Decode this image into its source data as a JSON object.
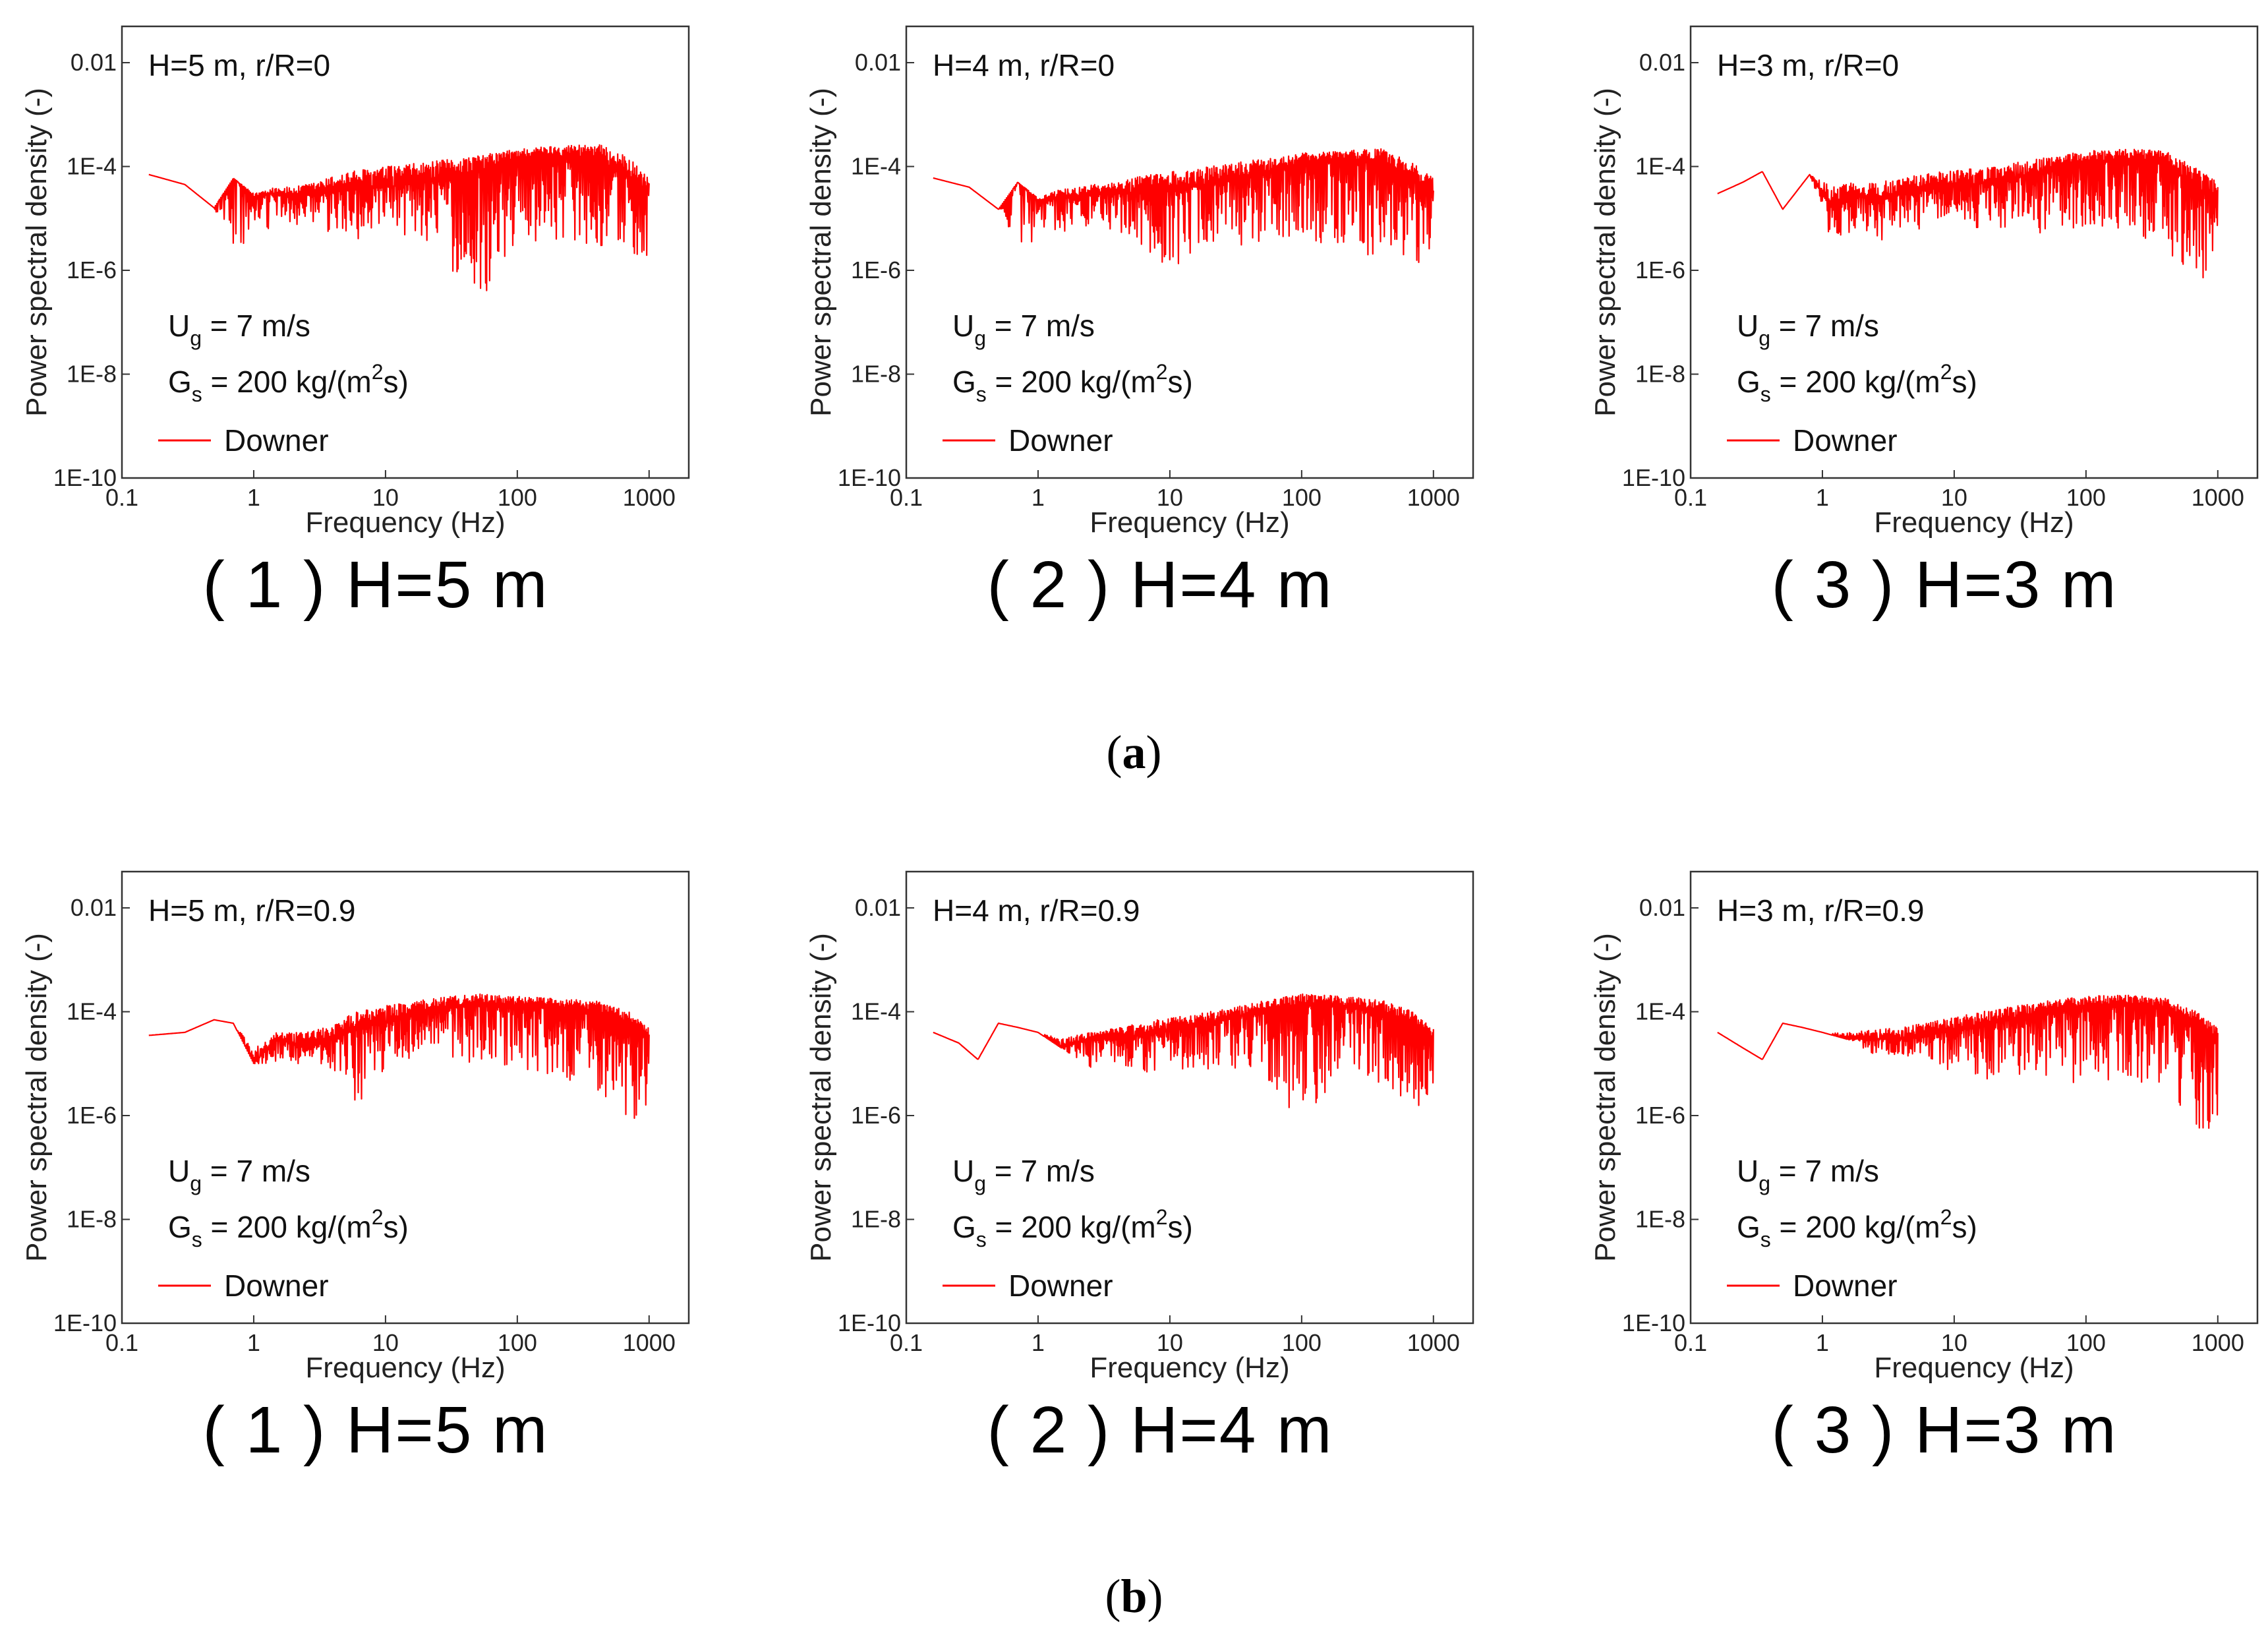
{
  "chart_data": [
    {
      "type": "line",
      "row": "a",
      "id": "a1",
      "title": "H=5 m, r/R=0",
      "xlabel": "Frequency (Hz)",
      "ylabel": "Power spectral density (-)",
      "xscale": "log",
      "yscale": "log",
      "xlim": [
        0.1,
        2000
      ],
      "ylim": [
        1e-10,
        0.05
      ],
      "xticks": [
        0.1,
        1,
        10,
        100,
        1000
      ],
      "xtick_labels": [
        "0.1",
        "1",
        "10",
        "100",
        "1000"
      ],
      "yticks": [
        1e-10,
        1e-08,
        1e-06,
        0.0001,
        0.01
      ],
      "ytick_labels": [
        "1E-10",
        "1E-8",
        "1E-6",
        "1E-4",
        "0.01"
      ],
      "ug": {
        "prefix": "U",
        "sub": "g",
        "rest": " = 7 m/s"
      },
      "gs": {
        "prefix": "G",
        "sub": "s",
        "mid": " = 200 kg/(m",
        "sup": "2",
        "rest": "s)"
      },
      "legend": "Downer",
      "series": [
        {
          "name": "Downer",
          "color": "#ff0000",
          "x": [
            0.16,
            0.3,
            0.5,
            0.7,
            1.0,
            1.4,
            2.0,
            3.0,
            5.0,
            10,
            20,
            50,
            100,
            200,
            400,
            700,
            1000
          ],
          "y_center": [
            7e-05,
            4.5e-05,
            1.6e-05,
            6e-05,
            2.5e-05,
            3e-05,
            2.5e-05,
            3e-05,
            3.5e-05,
            4e-05,
            5e-05,
            8e-05,
            0.00013,
            0.00016,
            0.00014,
            6e-05,
            3e-05
          ],
          "y_min": [
            7e-05,
            4.5e-05,
            1.6e-05,
            2e-06,
            3e-06,
            6e-06,
            8e-06,
            4e-06,
            4e-06,
            4e-06,
            4e-06,
            2e-07,
            3e-06,
            4e-06,
            3e-06,
            2e-06,
            1.5e-06
          ],
          "y_max": [
            7e-05,
            4.5e-05,
            1.6e-05,
            6e-05,
            3e-05,
            4e-05,
            4e-05,
            5e-05,
            8e-05,
            0.0001,
            0.00012,
            0.00016,
            0.00022,
            0.00025,
            0.00028,
            0.00015,
            6e-05
          ]
        }
      ]
    },
    {
      "type": "line",
      "row": "a",
      "id": "a2",
      "title": "H=4 m, r/R=0",
      "xlabel": "Frequency (Hz)",
      "ylabel": "Power spectral density (-)",
      "xscale": "log",
      "yscale": "log",
      "xlim": [
        0.1,
        2000
      ],
      "ylim": [
        1e-10,
        0.05
      ],
      "xticks": [
        0.1,
        1,
        10,
        100,
        1000
      ],
      "xtick_labels": [
        "0.1",
        "1",
        "10",
        "100",
        "1000"
      ],
      "yticks": [
        1e-10,
        1e-08,
        1e-06,
        0.0001,
        0.01
      ],
      "ytick_labels": [
        "1E-10",
        "1E-8",
        "1E-6",
        "1E-4",
        "0.01"
      ],
      "ug": {
        "prefix": "U",
        "sub": "g",
        "rest": " = 7 m/s"
      },
      "gs": {
        "prefix": "G",
        "sub": "s",
        "mid": " = 200 kg/(m",
        "sup": "2",
        "rest": "s)"
      },
      "legend": "Downer",
      "series": [
        {
          "name": "Downer",
          "color": "#ff0000",
          "x": [
            0.16,
            0.3,
            0.5,
            0.7,
            1.0,
            1.4,
            2.0,
            3.0,
            5.0,
            10,
            20,
            50,
            100,
            200,
            400,
            700,
            1000
          ],
          "y_center": [
            6e-05,
            4e-05,
            1.5e-05,
            5e-05,
            2.2e-05,
            2.5e-05,
            2.5e-05,
            3e-05,
            3e-05,
            3.5e-05,
            4.5e-05,
            7e-05,
            0.00011,
            0.00013,
            0.00012,
            6e-05,
            3e-05
          ],
          "y_min": [
            6e-05,
            4e-05,
            1.5e-05,
            2e-06,
            4e-06,
            5e-06,
            7e-06,
            6e-06,
            5e-06,
            1e-06,
            3e-06,
            3e-06,
            4e-06,
            2e-06,
            1e-06,
            1e-06,
            2e-06
          ],
          "y_max": [
            6e-05,
            4e-05,
            1.5e-05,
            5e-05,
            2.5e-05,
            3.5e-05,
            4e-05,
            5e-05,
            6e-05,
            8e-05,
            0.0001,
            0.00014,
            0.00018,
            0.0002,
            0.00022,
            0.00012,
            6e-05
          ]
        }
      ]
    },
    {
      "type": "line",
      "row": "a",
      "id": "a3",
      "title": "H=3 m, r/R=0",
      "xlabel": "Frequency (Hz)",
      "ylabel": "Power spectral density (-)",
      "xscale": "log",
      "yscale": "log",
      "xlim": [
        0.1,
        2000
      ],
      "ylim": [
        1e-10,
        0.05
      ],
      "xticks": [
        0.1,
        1,
        10,
        100,
        1000
      ],
      "xtick_labels": [
        "0.1",
        "1",
        "10",
        "100",
        "1000"
      ],
      "yticks": [
        1e-10,
        1e-08,
        1e-06,
        0.0001,
        0.01
      ],
      "ytick_labels": [
        "1E-10",
        "1E-8",
        "1E-6",
        "1E-4",
        "0.01"
      ],
      "ug": {
        "prefix": "U",
        "sub": "g",
        "rest": " = 7 m/s"
      },
      "gs": {
        "prefix": "G",
        "sub": "s",
        "mid": " = 200 kg/(m",
        "sup": "2",
        "rest": "s)"
      },
      "legend": "Downer",
      "series": [
        {
          "name": "Downer",
          "color": "#ff0000",
          "x": [
            0.16,
            0.25,
            0.35,
            0.5,
            0.8,
            1.2,
            1.8,
            2.5,
            4.0,
            8,
            20,
            50,
            100,
            200,
            400,
            700,
            1000
          ],
          "y_center": [
            3e-05,
            5e-05,
            8e-05,
            1.5e-05,
            7e-05,
            1.5e-05,
            3e-05,
            2e-05,
            3e-05,
            4e-05,
            5e-05,
            8e-05,
            0.00012,
            0.00013,
            0.00011,
            4e-05,
            2e-05
          ],
          "y_min": [
            3e-05,
            5e-05,
            8e-05,
            1.5e-05,
            7e-05,
            3e-06,
            5e-06,
            3e-06,
            5e-06,
            8e-06,
            6e-06,
            5e-06,
            6e-06,
            5e-06,
            2e-06,
            8e-07,
            3e-07
          ],
          "y_max": [
            3e-05,
            5e-05,
            8e-05,
            1.5e-05,
            7e-05,
            4e-05,
            5e-05,
            5e-05,
            6e-05,
            8e-05,
            0.0001,
            0.00015,
            0.0002,
            0.00022,
            0.0002,
            9e-05,
            5e-05
          ]
        }
      ]
    },
    {
      "type": "line",
      "row": "b",
      "id": "b1",
      "title": "H=5 m, r/R=0.9",
      "xlabel": "Frequency (Hz)",
      "ylabel": "Power spectral density (-)",
      "xscale": "log",
      "yscale": "log",
      "xlim": [
        0.1,
        2000
      ],
      "ylim": [
        1e-10,
        0.05
      ],
      "xticks": [
        0.1,
        1,
        10,
        100,
        1000
      ],
      "xtick_labels": [
        "0.1",
        "1",
        "10",
        "100",
        "1000"
      ],
      "yticks": [
        1e-10,
        1e-08,
        1e-06,
        0.0001,
        0.01
      ],
      "ytick_labels": [
        "1E-10",
        "1E-8",
        "1E-6",
        "1E-4",
        "0.01"
      ],
      "ug": {
        "prefix": "U",
        "sub": "g",
        "rest": " = 7 m/s"
      },
      "gs": {
        "prefix": "G",
        "sub": "s",
        "mid": " = 200 kg/(m",
        "sup": "2",
        "rest": "s)"
      },
      "legend": "Downer",
      "series": [
        {
          "name": "Downer",
          "color": "#ff0000",
          "x": [
            0.16,
            0.3,
            0.5,
            0.7,
            1.0,
            1.5,
            2.5,
            4.0,
            6.0,
            10,
            20,
            50,
            100,
            200,
            400,
            700,
            1000
          ],
          "y_center": [
            3.5e-05,
            4e-05,
            7e-05,
            6e-05,
            1e-05,
            3e-05,
            2e-05,
            3e-05,
            5e-05,
            6e-05,
            0.0001,
            0.00014,
            0.00013,
            0.00012,
            0.0001,
            6e-05,
            3e-05
          ],
          "y_min": [
            3.5e-05,
            4e-05,
            7e-05,
            6e-05,
            1e-05,
            1e-05,
            1e-05,
            8e-06,
            1.5e-06,
            8e-06,
            1.5e-05,
            1e-05,
            8e-06,
            5e-06,
            3e-06,
            5e-07,
            2e-06
          ],
          "y_max": [
            3.5e-05,
            4e-05,
            7e-05,
            6e-05,
            2e-05,
            4e-05,
            4e-05,
            6e-05,
            0.0001,
            0.00013,
            0.00018,
            0.00022,
            0.0002,
            0.00018,
            0.00016,
            0.0001,
            5e-05
          ]
        }
      ]
    },
    {
      "type": "line",
      "row": "b",
      "id": "b2",
      "title": "H=4 m, r/R=0.9",
      "xlabel": "Frequency (Hz)",
      "ylabel": "Power spectral density (-)",
      "xscale": "log",
      "yscale": "log",
      "xlim": [
        0.1,
        2000
      ],
      "ylim": [
        1e-10,
        0.05
      ],
      "xticks": [
        0.1,
        1,
        10,
        100,
        1000
      ],
      "xtick_labels": [
        "0.1",
        "1",
        "10",
        "100",
        "1000"
      ],
      "yticks": [
        1e-10,
        1e-08,
        1e-06,
        0.0001,
        0.01
      ],
      "ytick_labels": [
        "1E-10",
        "1E-8",
        "1E-6",
        "1E-4",
        "0.01"
      ],
      "ug": {
        "prefix": "U",
        "sub": "g",
        "rest": " = 7 m/s"
      },
      "gs": {
        "prefix": "G",
        "sub": "s",
        "mid": " = 200 kg/(m",
        "sup": "2",
        "rest": "s)"
      },
      "legend": "Downer",
      "series": [
        {
          "name": "Downer",
          "color": "#ff0000",
          "x": [
            0.16,
            0.25,
            0.35,
            0.5,
            0.7,
            1.0,
            1.5,
            2.5,
            4.0,
            8,
            20,
            50,
            100,
            200,
            400,
            700,
            1000
          ],
          "y_center": [
            4e-05,
            2.5e-05,
            1.2e-05,
            6e-05,
            5e-05,
            4e-05,
            2e-05,
            3e-05,
            3e-05,
            4e-05,
            6e-05,
            0.0001,
            0.00014,
            0.00013,
            0.0001,
            6e-05,
            3e-05
          ],
          "y_min": [
            4e-05,
            2.5e-05,
            1.2e-05,
            6e-05,
            5e-05,
            4e-05,
            2e-05,
            8e-06,
            1e-05,
            6e-06,
            8e-06,
            7e-06,
            6e-07,
            6e-06,
            4e-06,
            1.5e-06,
            1e-06
          ],
          "y_max": [
            4e-05,
            2.5e-05,
            1.2e-05,
            6e-05,
            5e-05,
            4e-05,
            3e-05,
            4e-05,
            5e-05,
            7e-05,
            0.0001,
            0.00016,
            0.00022,
            0.0002,
            0.00017,
            0.0001,
            5e-05
          ]
        }
      ]
    },
    {
      "type": "line",
      "row": "b",
      "id": "b3",
      "title": "H=3 m, r/R=0.9",
      "xlabel": "Frequency (Hz)",
      "ylabel": "Power spectral density (-)",
      "xscale": "log",
      "yscale": "log",
      "xlim": [
        0.1,
        2000
      ],
      "ylim": [
        1e-10,
        0.05
      ],
      "xticks": [
        0.1,
        1,
        10,
        100,
        1000
      ],
      "xtick_labels": [
        "0.1",
        "1",
        "10",
        "100",
        "1000"
      ],
      "yticks": [
        1e-10,
        1e-08,
        1e-06,
        0.0001,
        0.01
      ],
      "ytick_labels": [
        "1E-10",
        "1E-8",
        "1E-6",
        "1E-4",
        "0.01"
      ],
      "ug": {
        "prefix": "U",
        "sub": "g",
        "rest": " = 7 m/s"
      },
      "gs": {
        "prefix": "G",
        "sub": "s",
        "mid": " = 200 kg/(m",
        "sup": "2",
        "rest": "s)"
      },
      "legend": "Downer",
      "series": [
        {
          "name": "Downer",
          "color": "#ff0000",
          "x": [
            0.16,
            0.25,
            0.35,
            0.5,
            0.7,
            1.0,
            1.5,
            2.5,
            4.0,
            8,
            20,
            50,
            100,
            200,
            400,
            700,
            1000
          ],
          "y_center": [
            4e-05,
            2e-05,
            1.2e-05,
            6e-05,
            5e-05,
            4e-05,
            3e-05,
            3e-05,
            3e-05,
            4e-05,
            6e-05,
            0.0001,
            0.00013,
            0.00013,
            0.00011,
            6e-05,
            3e-05
          ],
          "y_min": [
            4e-05,
            2e-05,
            1.2e-05,
            6e-05,
            5e-05,
            4e-05,
            3e-05,
            1.5e-05,
            1.5e-05,
            8e-06,
            4e-06,
            5e-06,
            4e-06,
            5e-06,
            3e-06,
            5e-07,
            4e-07
          ],
          "y_max": [
            4e-05,
            2e-05,
            1.2e-05,
            6e-05,
            5e-05,
            4e-05,
            4e-05,
            4.5e-05,
            5e-05,
            7e-05,
            0.00011,
            0.00016,
            0.0002,
            0.00021,
            0.00018,
            0.0001,
            5e-05
          ]
        }
      ]
    }
  ],
  "subcaptions": [
    "( 1 ) H=5 m",
    "( 2 ) H=4 m",
    "( 3 ) H=3 m",
    "( 1 ) H=5 m",
    "( 2 ) H=4 m",
    "( 3 ) H=3 m"
  ],
  "figure_labels": {
    "a": {
      "open": "(",
      "letter": "a",
      "close": ")"
    },
    "b": {
      "open": "(",
      "letter": "b",
      "close": ")"
    }
  }
}
